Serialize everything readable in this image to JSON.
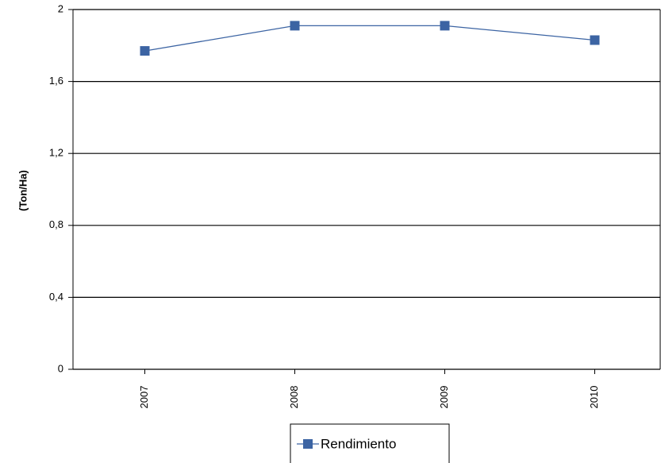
{
  "chart_data": {
    "type": "line",
    "y_label": "(Ton/Ha)",
    "categories": [
      "2007",
      "2008",
      "2009",
      "2010"
    ],
    "series": [
      {
        "name": "Rendimiento",
        "color": "#3c64a3",
        "values": [
          1.77,
          1.91,
          1.91,
          1.83
        ]
      }
    ],
    "ylim": [
      0,
      2
    ],
    "yticks": [
      0,
      {
        "value": 0.4,
        "label": "0,4"
      },
      {
        "value": 0.8,
        "label": "0,8"
      },
      {
        "value": 1.2,
        "label": "1,2"
      },
      {
        "value": 1.6,
        "label": "1,6"
      },
      2
    ],
    "grid": true
  }
}
